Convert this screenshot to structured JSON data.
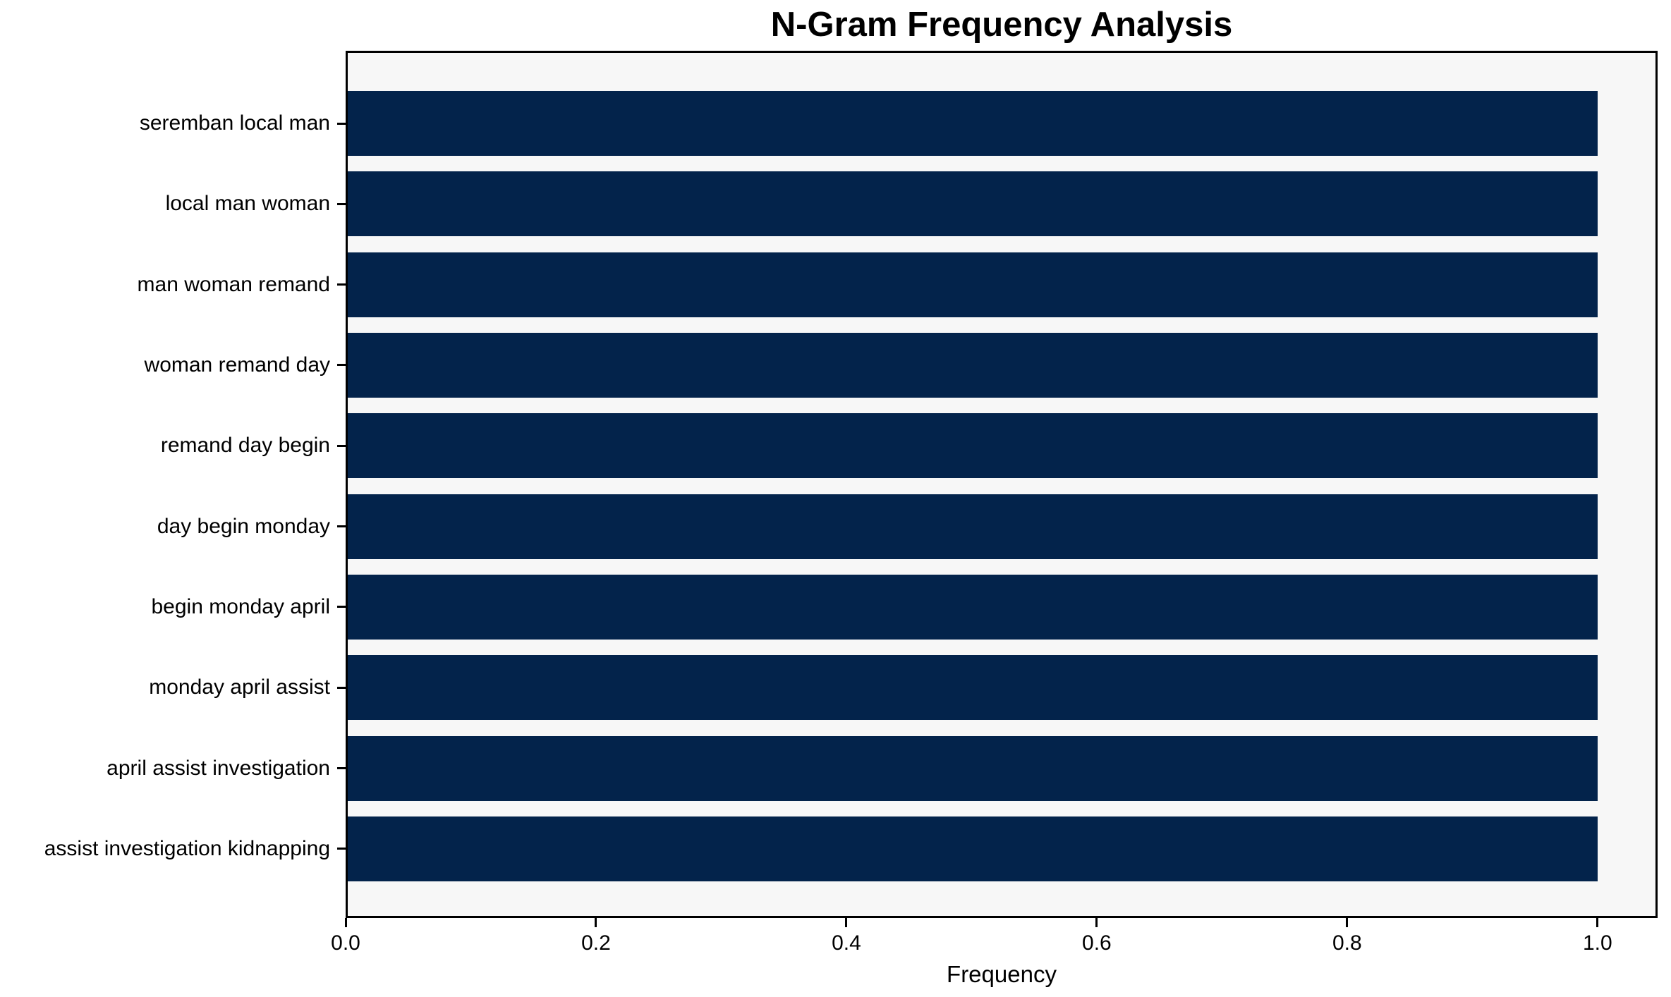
{
  "chart_data": {
    "type": "bar",
    "orientation": "horizontal",
    "title": "N-Gram Frequency Analysis",
    "xlabel": "Frequency",
    "ylabel": "",
    "categories": [
      "seremban local man",
      "local man woman",
      "man woman remand",
      "woman remand day",
      "remand day begin",
      "day begin monday",
      "begin monday april",
      "monday april assist",
      "april assist investigation",
      "assist investigation kidnapping"
    ],
    "values": [
      1.0,
      1.0,
      1.0,
      1.0,
      1.0,
      1.0,
      1.0,
      1.0,
      1.0,
      1.0
    ],
    "x_ticks": [
      0.0,
      0.2,
      0.4,
      0.6,
      0.8,
      1.0
    ],
    "x_tick_labels": [
      "0.0",
      "0.2",
      "0.4",
      "0.6",
      "0.8",
      "1.0"
    ],
    "xlim": [
      0,
      1.048
    ],
    "grid": false,
    "legend": null,
    "bar_color": "#03234b",
    "plot_bg_color": "#f7f7f7",
    "figure_bg_color": "#ffffff",
    "spine_color": "#000000"
  }
}
